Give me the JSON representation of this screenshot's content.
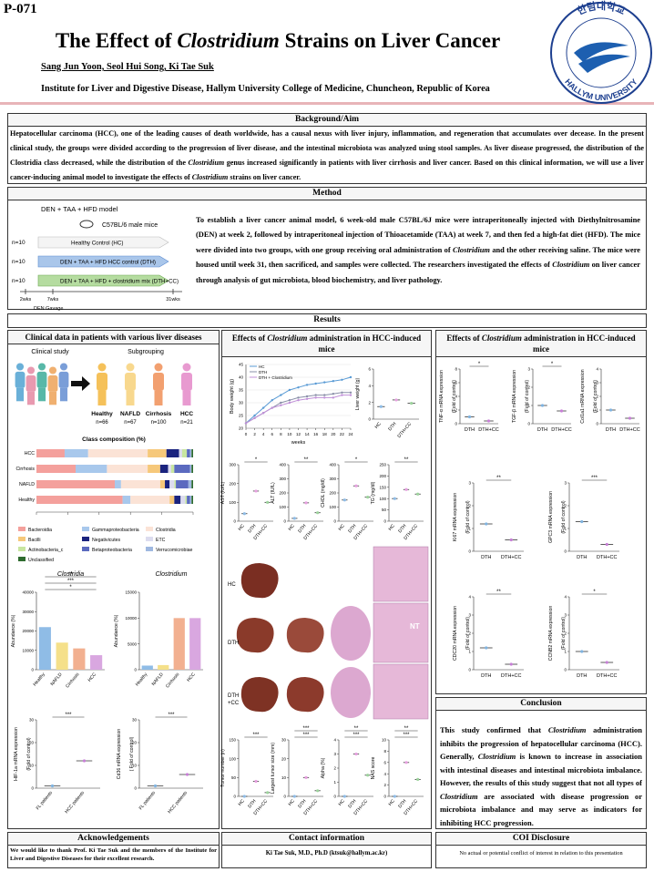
{
  "header": {
    "poster_id": "P-071",
    "title": [
      "The Effect of ",
      "Clostridium",
      " Strains on Liver Cancer"
    ],
    "authors": "Sang Jun Yoon, Seol Hui Song, Ki Tae Suk",
    "affiliation": "Institute for Liver and Digestive Disease, Hallym University College of Medicine, Chuncheon, Republic of Korea",
    "logo_top": "한림대학교",
    "logo_bottom": "HALLYM UNIVERSITY"
  },
  "background": {
    "heading": "Background/Aim",
    "text": [
      "Hepatocellular carcinoma (HCC), one of the leading causes of death worldwide, has a causal nexus with liver injury, inflammation, and regeneration that accumulates over decease. In the present clinical study, the groups were divided according to the progression of liver disease, and the intestinal microbiota was analyzed using stool samples. As liver disease progressed, the distribution of the Clostridia class decreased, while the distribution of the ",
      "Clostridium",
      " genus increased significantly in patients with liver cirrhosis and liver cancer. Based on this clinical information, we will use a liver cancer-inducing animal model to investigate the effects of ",
      "Clostridium",
      " strains on liver cancer."
    ]
  },
  "method": {
    "heading": "Method",
    "model": "DEN + TAA + HFD model",
    "mice": "C57BL/6  male mice",
    "n": [
      "n=10",
      "n=10",
      "n=10"
    ],
    "groups": [
      "Healthy Control (HC)",
      "DEN + TAA + HFD HCC control (DTH)",
      "DEN + TAA + HFD + clostridium mix (DTH+CC)"
    ],
    "times": [
      "2wks",
      "7wks",
      "31wks"
    ],
    "gavage": "DEN Gavage",
    "text": [
      "To establish a liver cancer animal model, 6 week-old male C57BL/6J mice were intraperitoneally injected with Diethylnitrosamine (DEN) at week 2, followed by intraperitoneal injection of Thioacetamide (TAA) at week 7, and then fed a high-fat diet (HFD). The mice were divided into two groups, with one group receiving oral administration of ",
      "Clostridium",
      " and the other receiving saline. The mice were housed until week 31, then sacrificed, and samples were collected. The researchers investigated the effects of ",
      "Clostridium",
      " on liver cancer through analysis of gut microbiota, blood biochemistry, and liver pathology."
    ]
  },
  "results": {
    "heading": "Results",
    "left_heading": "Clinical data in patients with various liver diseases",
    "mid_heading": [
      "Effects of ",
      "Clostridium",
      " administration in HCC-induced mice"
    ],
    "right_heading": [
      "Effects of ",
      "Clostridium",
      " administration in HCC-induced mice"
    ]
  },
  "clinical": {
    "study": "Clinical study",
    "subgrouping": "Subgrouping",
    "groups": [
      {
        "name": "Healthy",
        "n": "n=66"
      },
      {
        "name": "NAFLD",
        "n": "n=67"
      },
      {
        "name": "Cirrhosis",
        "n": "n=100"
      },
      {
        "name": "HCC",
        "n": "n=21"
      }
    ]
  },
  "composition": {
    "type": "bar",
    "title": "Class composition (%)",
    "categories": [
      "HCC",
      "Cirrhosis",
      "NAFLD",
      "Healthy"
    ],
    "xlim": [
      0,
      100
    ],
    "xticks": [
      0,
      20,
      40,
      60,
      80,
      100
    ],
    "series": [
      {
        "name": "Bacteroidia",
        "color": "#f4a09c",
        "values": [
          18,
          25,
          50,
          55
        ]
      },
      {
        "name": "Gammaproteobacteria",
        "color": "#a8c8ec",
        "values": [
          15,
          20,
          4,
          5
        ]
      },
      {
        "name": "Clostridia",
        "color": "#fbe3d6",
        "values": [
          38,
          26,
          25,
          25
        ]
      },
      {
        "name": "Bacilli",
        "color": "#f6c87a",
        "values": [
          12,
          8,
          3,
          3
        ]
      },
      {
        "name": "Negativicutes",
        "color": "#1a237e",
        "values": [
          8,
          5,
          3,
          4
        ]
      },
      {
        "name": "ETC",
        "color": "#dcdcef",
        "values": [
          2,
          2,
          3,
          3
        ]
      },
      {
        "name": "Actinobacteria_c",
        "color": "#c8e6a0",
        "values": [
          3,
          2,
          1,
          1
        ]
      },
      {
        "name": "Betaproteobacteria",
        "color": "#5b6abf",
        "values": [
          2,
          10,
          8,
          2
        ]
      },
      {
        "name": "Verrucomicrobiae",
        "color": "#9fb8e0",
        "values": [
          1,
          1,
          2,
          1
        ]
      },
      {
        "name": "Unclassified",
        "color": "#2e6b2e",
        "values": [
          1,
          1,
          1,
          1
        ]
      }
    ]
  },
  "figures": [
    {
      "type": "bar",
      "title": "Clostridia",
      "ylabel": [
        "Abundance (%)"
      ],
      "categories": [
        "Healthy",
        "NAFLD",
        "Cirrhosis",
        "HCC"
      ],
      "values": [
        22000,
        14000,
        11000,
        7500
      ],
      "colors": [
        "#8fbce6",
        "#f5e08a",
        "#f2b090",
        "#d9a7e0"
      ],
      "ylim": [
        0,
        40000
      ],
      "yticks": [
        0,
        10000,
        20000,
        30000,
        40000
      ],
      "sig": [
        "*",
        "***",
        "**"
      ]
    },
    {
      "type": "bar",
      "title": "Clostridium",
      "ylabel": [
        "Abundance (%)"
      ],
      "categories": [
        "Healthy",
        "NAFLD",
        "Cirrhosis",
        "HCC"
      ],
      "values": [
        800,
        900,
        10000,
        10000
      ],
      "colors": [
        "#8fbce6",
        "#f5e08a",
        "#f2b090",
        "#d9a7e0"
      ],
      "ylim": [
        0,
        15000
      ],
      "yticks": [
        0,
        5000,
        10000,
        15000
      ]
    },
    {
      "type": "dot",
      "ylabel": [
        "HIF-1a mRNA expression",
        "(Fold of control)"
      ],
      "categories": [
        "FL patients",
        "HCC patients"
      ],
      "values": [
        1,
        12
      ],
      "colors": [
        "#7fb3e0",
        "#c77fd6"
      ],
      "ylim": [
        0,
        30
      ],
      "yticks": [
        0,
        10,
        20,
        30
      ],
      "sig": [
        "***"
      ]
    },
    {
      "type": "dot",
      "ylabel": [
        "Cd36 mRNA expression",
        "( Fold of control)"
      ],
      "categories": [
        "FL patients",
        "HCC patients"
      ],
      "values": [
        1,
        6
      ],
      "colors": [
        "#7fb3e0",
        "#c77fd6"
      ],
      "ylim": [
        0,
        30
      ],
      "yticks": [
        0,
        10,
        20,
        30
      ],
      "sig": [
        "***"
      ]
    },
    {
      "type": "dot",
      "ylabel": [
        "Liver weight (g)"
      ],
      "categories": [
        "HC",
        "DTH",
        "DTH+CC"
      ],
      "values": [
        1.5,
        2.3,
        1.9
      ],
      "colors": [
        "#8fbce6",
        "#e7a0e0",
        "#9ed39e"
      ],
      "ylim": [
        0,
        6
      ],
      "yticks": [
        0,
        2,
        4,
        6
      ]
    },
    {
      "type": "dot",
      "ylabel": [
        "AST (IU/L)"
      ],
      "categories": [
        "HC",
        "DTH",
        "DTH+CC"
      ],
      "values": [
        40,
        160,
        100
      ],
      "colors": [
        "#8fbce6",
        "#e7a0e0",
        "#9ed39e"
      ],
      "ylim": [
        0,
        300
      ],
      "yticks": [
        0,
        100,
        200,
        300
      ],
      "sig": [
        "*"
      ]
    },
    {
      "type": "dot",
      "ylabel": [
        "ALT (IU/L)"
      ],
      "categories": [
        "HC",
        "DTH",
        "DTH+CC"
      ],
      "values": [
        20,
        130,
        60
      ],
      "colors": [
        "#8fbce6",
        "#e7a0e0",
        "#9ed39e"
      ],
      "ylim": [
        0,
        400
      ],
      "yticks": [
        0,
        100,
        200,
        300,
        400
      ],
      "sig": [
        "**"
      ]
    },
    {
      "type": "dot",
      "ylabel": [
        "CHOL (mg/dl)"
      ],
      "categories": [
        "HC",
        "DTH",
        "DTH+CC"
      ],
      "values": [
        150,
        250,
        170
      ],
      "colors": [
        "#8fbce6",
        "#e7a0e0",
        "#9ed39e"
      ],
      "ylim": [
        0,
        400
      ],
      "yticks": [
        0,
        100,
        200,
        300,
        400
      ],
      "sig": [
        "*"
      ]
    },
    {
      "type": "dot",
      "ylabel": [
        "TG (mg/dl)"
      ],
      "categories": [
        "HC",
        "DTH",
        "DTH+CC"
      ],
      "values": [
        100,
        140,
        120
      ],
      "colors": [
        "#8fbce6",
        "#e7a0e0",
        "#9ed39e"
      ],
      "ylim": [
        0,
        250
      ],
      "yticks": [
        0,
        50,
        100,
        150,
        200,
        250
      ],
      "sig": [
        "**"
      ]
    },
    {
      "type": "dot",
      "ylabel": [
        "Tumor number (n)"
      ],
      "categories": [
        "HC",
        "DTH",
        "DTH+CC"
      ],
      "values": [
        0,
        40,
        10
      ],
      "colors": [
        "#8fbce6",
        "#e7a0e0",
        "#9ed39e"
      ],
      "ylim": [
        0,
        150
      ],
      "yticks": [
        0,
        50,
        100,
        150
      ],
      "sig": [
        "***"
      ]
    },
    {
      "type": "dot",
      "ylabel": [
        "Largest tumor size (mm)"
      ],
      "categories": [
        "HC",
        "DTH",
        "DTH+CC"
      ],
      "values": [
        0,
        10,
        3
      ],
      "colors": [
        "#8fbce6",
        "#e7a0e0",
        "#9ed39e"
      ],
      "ylim": [
        0,
        30
      ],
      "yticks": [
        0,
        10,
        20,
        30
      ],
      "sig": [
        "***",
        "***"
      ]
    },
    {
      "type": "dot",
      "ylabel": [
        "Alpha (%)"
      ],
      "categories": [
        "HC",
        "DTH",
        "DTH+CC"
      ],
      "values": [
        0,
        3,
        1.5
      ],
      "colors": [
        "#8fbce6",
        "#e7a0e0",
        "#9ed39e"
      ],
      "ylim": [
        0,
        4
      ],
      "yticks": [
        0,
        1,
        2,
        3,
        4
      ],
      "sig": [
        "***",
        "**"
      ]
    },
    {
      "type": "dot",
      "ylabel": [
        "NAS score"
      ],
      "categories": [
        "HC",
        "DTH",
        "DTH+CC"
      ],
      "values": [
        0,
        6,
        3
      ],
      "colors": [
        "#8fbce6",
        "#e7a0e0",
        "#9ed39e"
      ],
      "ylim": [
        0,
        10
      ],
      "yticks": [
        0,
        2,
        4,
        6,
        8,
        10
      ],
      "sig": [
        "***",
        "**"
      ]
    },
    {
      "type": "dot",
      "ylabel": [
        "TNF-α mRNA expression",
        "(Fold of control)"
      ],
      "categories": [
        "DTH",
        "DTH+CC"
      ],
      "values": [
        1,
        0.4
      ],
      "colors": [
        "#7fb3e0",
        "#c77fd6"
      ],
      "ylim": [
        0,
        8
      ],
      "yticks": [
        0,
        2,
        4,
        6,
        8
      ],
      "sig": [
        "*"
      ]
    },
    {
      "type": "dot",
      "ylabel": [
        "TGF-β mRNA expression",
        "(Fold of control)"
      ],
      "categories": [
        "DTH",
        "DTH+CC"
      ],
      "values": [
        1,
        0.7
      ],
      "colors": [
        "#7fb3e0",
        "#c77fd6"
      ],
      "ylim": [
        0,
        3
      ],
      "yticks": [
        0,
        1,
        2,
        3
      ],
      "sig": [
        "*"
      ]
    },
    {
      "type": "dot",
      "ylabel": [
        "Col1a1 mRNA expression",
        "(Fold of control)"
      ],
      "categories": [
        "DTH",
        "DTH+CC"
      ],
      "values": [
        1,
        0.4
      ],
      "colors": [
        "#7fb3e0",
        "#c77fd6"
      ],
      "ylim": [
        0,
        4
      ],
      "yticks": [
        0,
        1,
        2,
        3,
        4
      ]
    },
    {
      "type": "dot",
      "ylabel": [
        "Ki67 mRNA expression",
        "(Fold of control)"
      ],
      "categories": [
        "DTH",
        "DTH+CC"
      ],
      "values": [
        1.2,
        0.5
      ],
      "colors": [
        "#7fb3e0",
        "#c77fd6"
      ],
      "ylim": [
        0,
        3
      ],
      "yticks": [
        0,
        1,
        2,
        3
      ],
      "sig": [
        "**"
      ]
    },
    {
      "type": "dot",
      "ylabel": [
        "GPC3 mRNA expression",
        "(Fold of control)"
      ],
      "categories": [
        "DTH",
        "DTH+CC"
      ],
      "values": [
        1.3,
        0.3
      ],
      "colors": [
        "#7fb3e0",
        "#c77fd6"
      ],
      "ylim": [
        0,
        3
      ],
      "yticks": [
        0,
        1,
        2,
        3
      ],
      "sig": [
        "***"
      ]
    },
    {
      "type": "dot",
      "ylabel": [
        "CDC20 mRNA expression",
        "(Fold of control)"
      ],
      "categories": [
        "DTH",
        "DTH+CC"
      ],
      "values": [
        1.2,
        0.3
      ],
      "colors": [
        "#7fb3e0",
        "#c77fd6"
      ],
      "ylim": [
        0,
        4
      ],
      "yticks": [
        0,
        1,
        2,
        3,
        4
      ],
      "sig": [
        "**"
      ]
    },
    {
      "type": "dot",
      "ylabel": [
        "CCNB2 mRNA expression",
        "(Fold of control)"
      ],
      "categories": [
        "DTH",
        "DTH+CC"
      ],
      "values": [
        1,
        0.4
      ],
      "colors": [
        "#7fb3e0",
        "#c77fd6"
      ],
      "ylim": [
        0,
        4
      ],
      "yticks": [
        0,
        1,
        2,
        3,
        4
      ],
      "sig": [
        "*"
      ]
    }
  ],
  "body_weight": {
    "type": "line",
    "ylabel": "Body weight (g)",
    "xlabel": "weeks",
    "x": [
      0,
      2,
      4,
      6,
      8,
      10,
      12,
      14,
      16,
      18,
      20,
      22,
      24
    ],
    "xlim": [
      0,
      24
    ],
    "xticks": [
      0,
      2,
      4,
      6,
      8,
      10,
      12,
      14,
      16,
      18,
      20,
      22,
      24
    ],
    "ylim": [
      20,
      45
    ],
    "yticks": [
      20,
      25,
      30,
      35,
      40,
      45
    ],
    "series": [
      {
        "name": "HC",
        "color": "#5a9bd5",
        "values": [
          22,
          25,
          28,
          31,
          33,
          35,
          36,
          37,
          37.5,
          38,
          38.5,
          39,
          40
        ]
      },
      {
        "name": "DTH",
        "color": "#8a8fa8",
        "values": [
          22,
          24,
          26,
          28,
          30,
          31,
          32,
          32.5,
          33,
          33,
          33.5,
          34,
          34
        ]
      },
      {
        "name": "DTH + Clostridium",
        "color": "#c090d8",
        "values": [
          22,
          24,
          26,
          28,
          29,
          30,
          31,
          31.5,
          32,
          32,
          32,
          33,
          33
        ]
      }
    ]
  },
  "liver_images": {
    "hc": "HC",
    "dth": "DTH",
    "dthcc": [
      "DTH",
      "+CC"
    ],
    "nt": "NT"
  },
  "conclusion": {
    "heading": "Conclusion",
    "text": [
      "This study confirmed that ",
      "Clostridium",
      " administration inhibits the progression of hepatocellular carcinoma (HCC). Generally, ",
      "Clostridium",
      " is known to increase in association with intestinal diseases and intestinal microbiota imbalance. However, the results of this study suggest that not all types of ",
      "Clostridium",
      " are associated with disease progression or microbiota imbalance and may serve as indicators for inhibiting HCC progression."
    ]
  },
  "acknowledgements": {
    "heading": "Acknowledgements",
    "text": "We would like to thank Prof. Ki Tae Suk and the members of the Institute for Liver and Digestive Diseases for their excellent research."
  },
  "contact": {
    "heading": "Contact information",
    "text": "Ki Tae Suk, M.D., Ph.D (ktsuk@hallym.ac.kr)"
  },
  "coi": {
    "heading": "COI Disclosure",
    "text": "No actual or potential conflict of interest in relation to this presentation"
  }
}
